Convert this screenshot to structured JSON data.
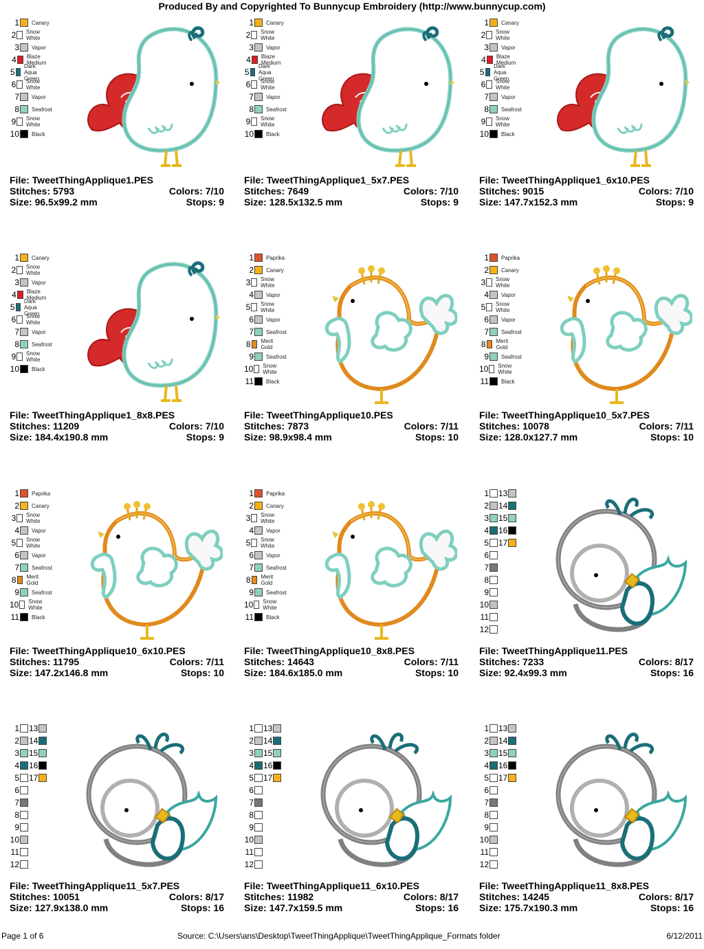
{
  "header": "Produced By and Copyrighted To Bunnycup Embroidery (http://www.bunnycup.com)",
  "footer": {
    "page": "Page 1 of 6",
    "source": "Source: C:\\Users\\ans\\Desktop\\TweetThingApplique\\TweetThingApplique_Formats folder",
    "date": "6/12/2011"
  },
  "labels": {
    "file": "File: ",
    "stitches": "Stitches: ",
    "size": "Size: ",
    "colors": "Colors: ",
    "stops": "Stops: "
  },
  "legends": {
    "a": [
      {
        "n": "1",
        "name": "Canary",
        "color": "#f5b119"
      },
      {
        "n": "2",
        "name": "Snow White",
        "color": "#ffffff"
      },
      {
        "n": "3",
        "name": "Vapor",
        "color": "#c4c4c4"
      },
      {
        "n": "4",
        "name": "Blaze Medium",
        "color": "#e31b23"
      },
      {
        "n": "5",
        "name": "Dark Aqua Green",
        "color": "#1a6e78"
      },
      {
        "n": "6",
        "name": "Snow White",
        "color": "#ffffff"
      },
      {
        "n": "7",
        "name": "Vapor",
        "color": "#c4c4c4"
      },
      {
        "n": "8",
        "name": "Seafrost",
        "color": "#8fd0c0"
      },
      {
        "n": "9",
        "name": "Snow White",
        "color": "#ffffff"
      },
      {
        "n": "10",
        "name": "Black",
        "color": "#000000"
      }
    ],
    "b": [
      {
        "n": "1",
        "name": "Paprika",
        "color": "#e0522b"
      },
      {
        "n": "2",
        "name": "Canary",
        "color": "#f5b119"
      },
      {
        "n": "3",
        "name": "Snow White",
        "color": "#ffffff"
      },
      {
        "n": "4",
        "name": "Vapor",
        "color": "#c4c4c4"
      },
      {
        "n": "5",
        "name": "Snow White",
        "color": "#ffffff"
      },
      {
        "n": "6",
        "name": "Vapor",
        "color": "#c4c4c4"
      },
      {
        "n": "7",
        "name": "Seafrost",
        "color": "#8fd0c0"
      },
      {
        "n": "8",
        "name": "Merit Gold",
        "color": "#e58a1a"
      },
      {
        "n": "9",
        "name": "Seafrost",
        "color": "#8fd0c0"
      },
      {
        "n": "10",
        "name": "Snow White",
        "color": "#ffffff"
      },
      {
        "n": "11",
        "name": "Black",
        "color": "#000000"
      }
    ],
    "c": [
      {
        "n": "1",
        "color": "#ffffff",
        "n2": "13",
        "color2": "#c4c4c4"
      },
      {
        "n": "2",
        "color": "#c4c4c4",
        "n2": "14",
        "color2": "#1a6e78"
      },
      {
        "n": "3",
        "color": "#8fd0c0",
        "n2": "15",
        "color2": "#8fd0c0"
      },
      {
        "n": "4",
        "color": "#1a6e78",
        "n2": "16",
        "color2": "#000000"
      },
      {
        "n": "5",
        "color": "#ffffff",
        "n2": "17",
        "color2": "#f5b119"
      },
      {
        "n": "6",
        "color": "#ffffff"
      },
      {
        "n": "7",
        "color": "#777777"
      },
      {
        "n": "8",
        "color": "#ffffff"
      },
      {
        "n": "9",
        "color": "#ffffff"
      },
      {
        "n": "10",
        "color": "#c4c4c4"
      },
      {
        "n": "11",
        "color": "#ffffff"
      },
      {
        "n": "12",
        "color": "#ffffff"
      }
    ]
  },
  "designs": [
    {
      "file": "TweetThingApplique1.PES",
      "stitches": "5793",
      "size": "96.5x99.2 mm",
      "colors": "7/10",
      "stops": "9",
      "legend": "a",
      "art": "red"
    },
    {
      "file": "TweetThingApplique1_5x7.PES",
      "stitches": "7649",
      "size": "128.5x132.5 mm",
      "colors": "7/10",
      "stops": "9",
      "legend": "a",
      "art": "red"
    },
    {
      "file": "TweetThingApplique1_6x10.PES",
      "stitches": "9015",
      "size": "147.7x152.3 mm",
      "colors": "7/10",
      "stops": "9",
      "legend": "a",
      "art": "red"
    },
    {
      "file": "TweetThingApplique1_8x8.PES",
      "stitches": "11209",
      "size": "184.4x190.8 mm",
      "colors": "7/10",
      "stops": "9",
      "legend": "a",
      "art": "red"
    },
    {
      "file": "TweetThingApplique10.PES",
      "stitches": "7873",
      "size": "98.9x98.4 mm",
      "colors": "7/11",
      "stops": "10",
      "legend": "b",
      "art": "orange"
    },
    {
      "file": "TweetThingApplique10_5x7.PES",
      "stitches": "10078",
      "size": "128.0x127.7 mm",
      "colors": "7/11",
      "stops": "10",
      "legend": "b",
      "art": "orange"
    },
    {
      "file": "TweetThingApplique10_6x10.PES",
      "stitches": "11795",
      "size": "147.2x146.8 mm",
      "colors": "7/11",
      "stops": "10",
      "legend": "b",
      "art": "orange"
    },
    {
      "file": "TweetThingApplique10_8x8.PES",
      "stitches": "14643",
      "size": "184.6x185.0 mm",
      "colors": "7/11",
      "stops": "10",
      "legend": "b",
      "art": "orange"
    },
    {
      "file": "TweetThingApplique11.PES",
      "stitches": "7233",
      "size": "92.4x99.3 mm",
      "colors": "8/17",
      "stops": "16",
      "legend": "c",
      "art": "gray"
    },
    {
      "file": "TweetThingApplique11_5x7.PES",
      "stitches": "10051",
      "size": "127.9x138.0 mm",
      "colors": "8/17",
      "stops": "16",
      "legend": "c",
      "art": "gray"
    },
    {
      "file": "TweetThingApplique11_6x10.PES",
      "stitches": "11982",
      "size": "147.7x159.5 mm",
      "colors": "8/17",
      "stops": "16",
      "legend": "c",
      "art": "gray"
    },
    {
      "file": "TweetThingApplique11_8x8.PES",
      "stitches": "14245",
      "size": "175.7x190.3 mm",
      "colors": "8/17",
      "stops": "16",
      "legend": "c",
      "art": "gray"
    }
  ]
}
